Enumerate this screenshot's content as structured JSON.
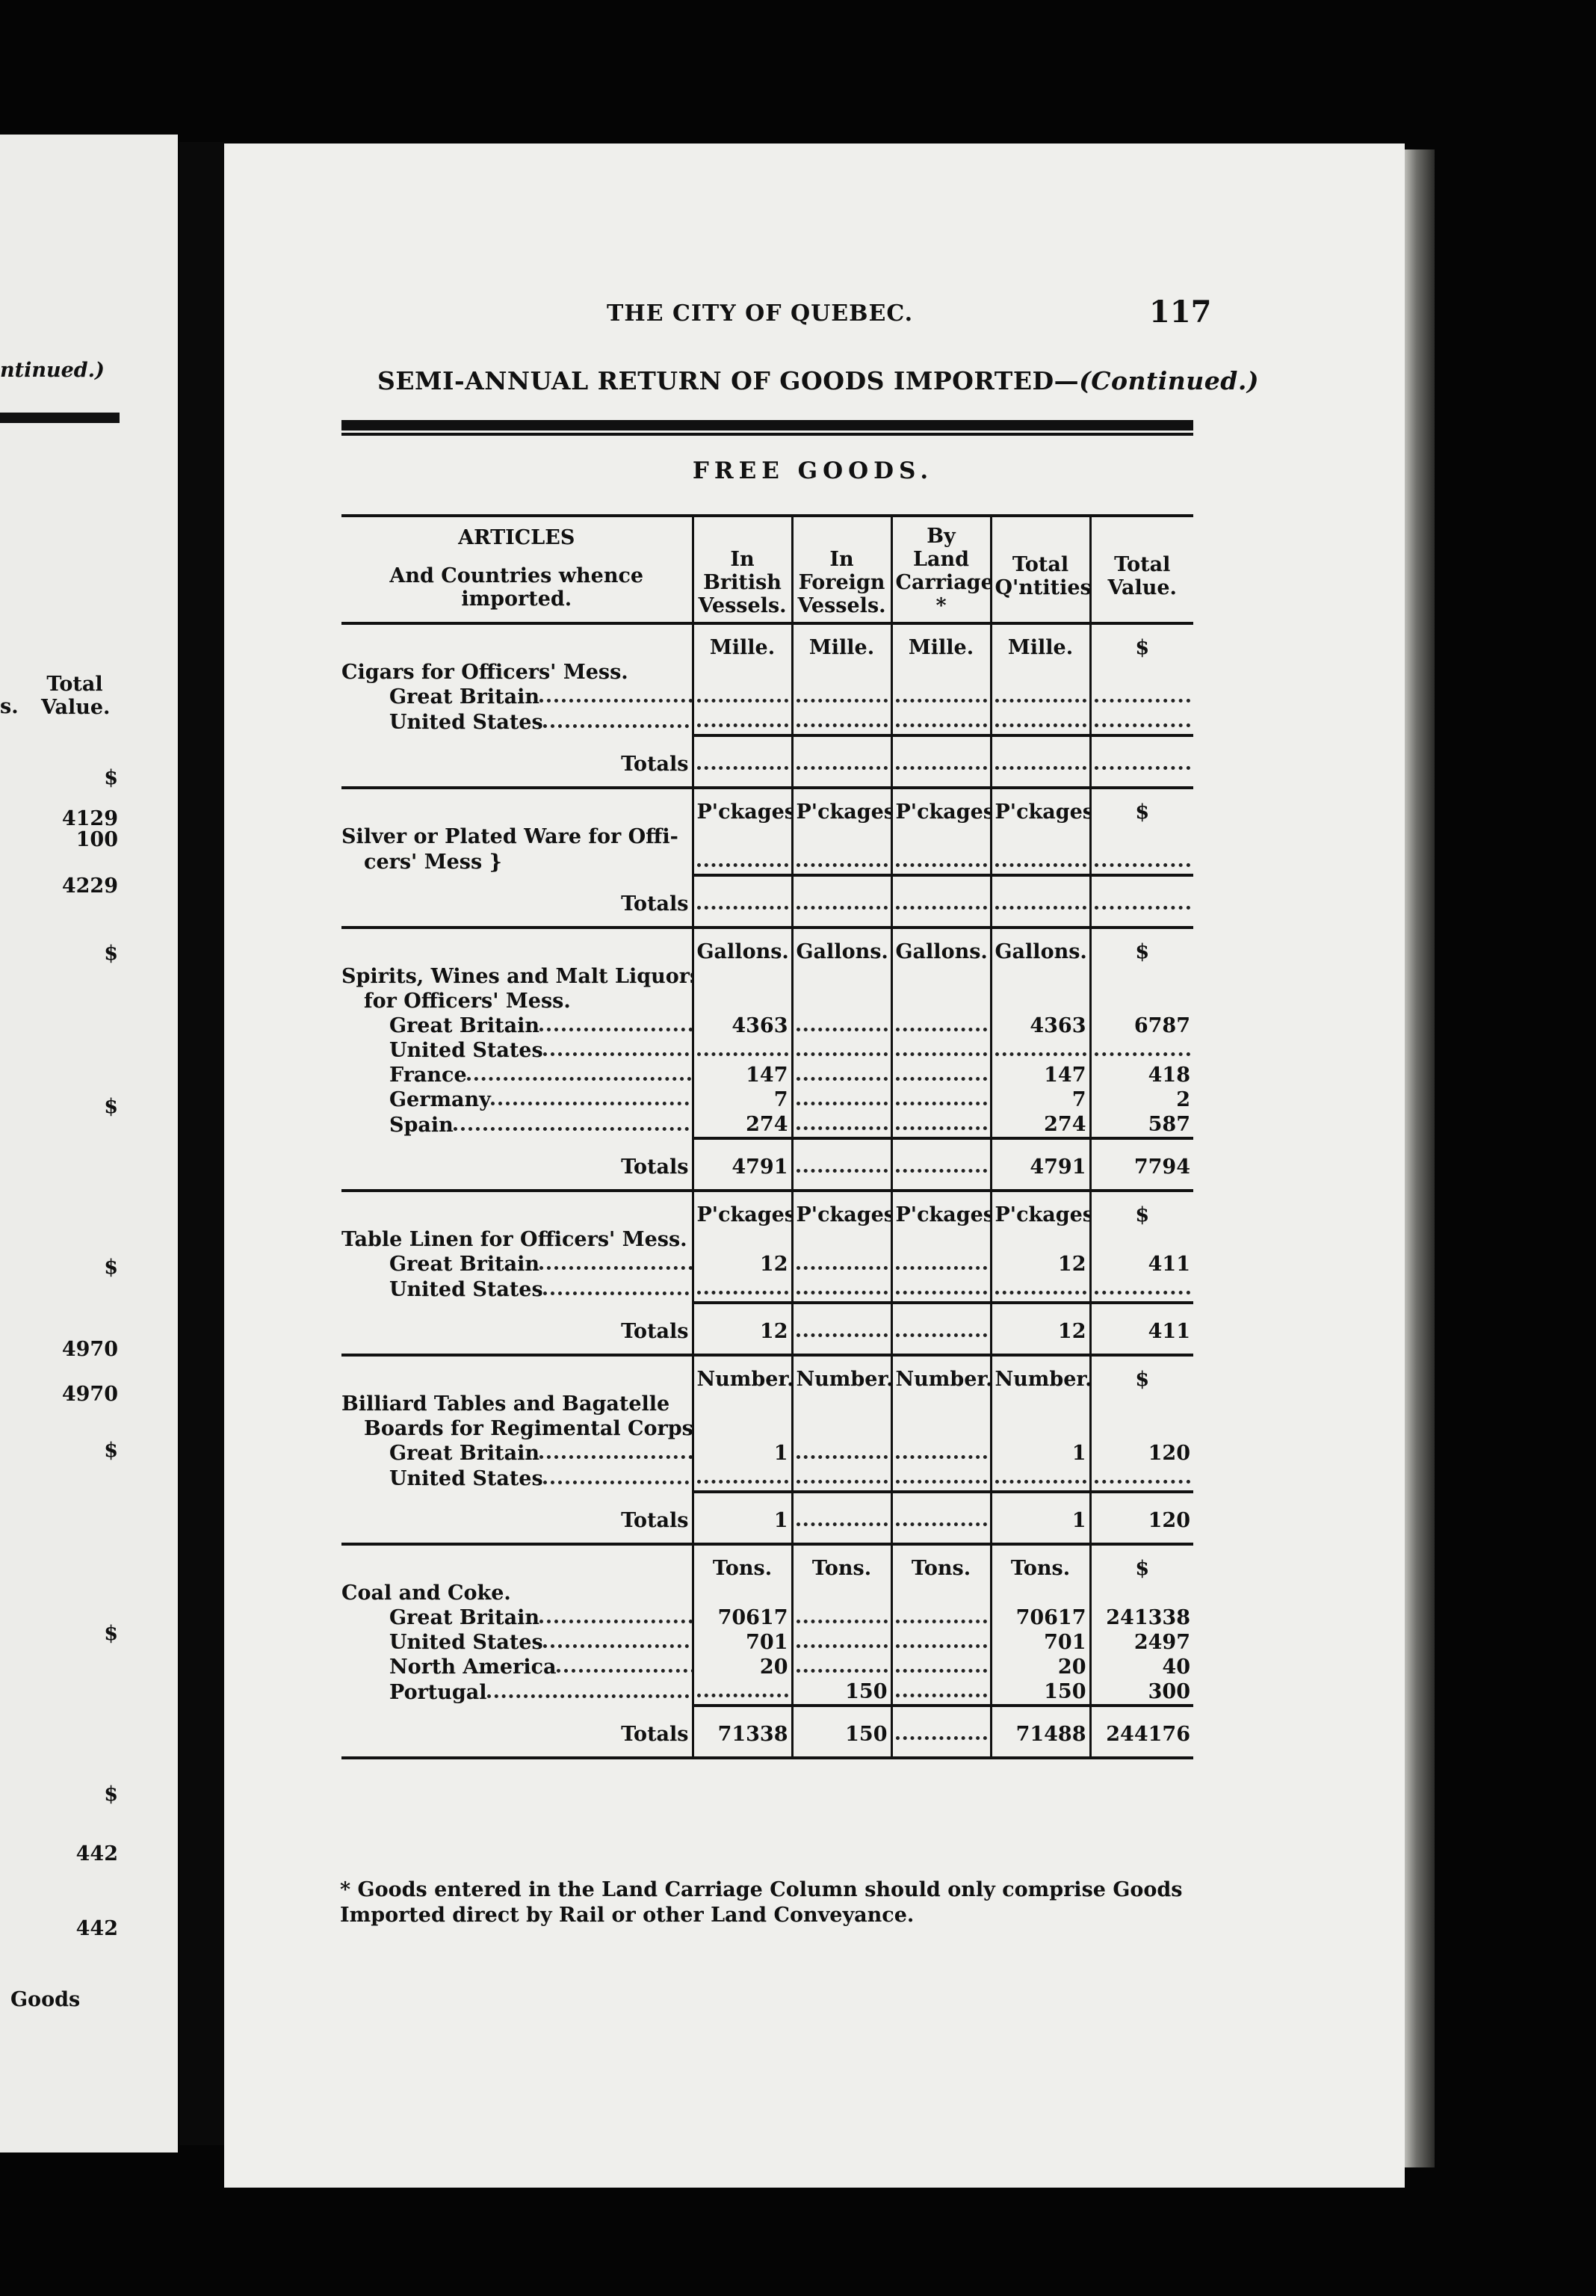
{
  "left_page": {
    "header_fragment": "ntinued.)",
    "col_fragment": "s.",
    "total_value_header": "Total Value.",
    "values": [
      "$",
      "4129",
      "100",
      "4229",
      "$",
      "$",
      "$",
      "4970",
      "4970",
      "$",
      "$",
      "$",
      "442",
      "442"
    ],
    "footer_fragment": "Goods"
  },
  "running_title": "THE CITY OF QUEBEC.",
  "page_number": "117",
  "title": "SEMI-ANNUAL RETURN OF GOODS IMPORTED—",
  "title_continued": "(Continued.)",
  "subtitle": "FREE GOODS.",
  "headers": {
    "articles_1": "ARTICLES",
    "articles_2": "And Countries whence imported.",
    "british": "In British Vessels.",
    "foreign": "In Foreign Vessels.",
    "land": "By Land Carriage *",
    "qty": "Total Q'ntities",
    "value": "Total Value."
  },
  "totals_label": "Totals",
  "sections": [
    {
      "units": "Mille.",
      "value_unit": "$",
      "name_lines": [
        "Cigars for Officers' Mess."
      ],
      "rows": [
        {
          "label": "Great Britain",
          "british": null,
          "foreign": null,
          "land": null,
          "qty": null,
          "value": null
        },
        {
          "label": "United States",
          "british": null,
          "foreign": null,
          "land": null,
          "qty": null,
          "value": null
        }
      ],
      "totals": {
        "british": null,
        "foreign": null,
        "land": null,
        "qty": null,
        "value": null
      }
    },
    {
      "units": "P'ckages",
      "value_unit": "$",
      "name_lines": [
        "Silver or Plated Ware for Offi-",
        "cers' Mess }"
      ],
      "rows": [
        {
          "label": "",
          "british": null,
          "foreign": null,
          "land": null,
          "qty": null,
          "value": null
        }
      ],
      "totals": {
        "british": null,
        "foreign": null,
        "land": null,
        "qty": null,
        "value": null
      }
    },
    {
      "units": "Gallons.",
      "value_unit": "$",
      "name_lines": [
        "Spirits, Wines and Malt Liquors",
        "for Officers' Mess."
      ],
      "rows": [
        {
          "label": "Great Britain",
          "british": "4363",
          "foreign": null,
          "land": null,
          "qty": "4363",
          "value": "6787"
        },
        {
          "label": "United States",
          "british": null,
          "foreign": null,
          "land": null,
          "qty": null,
          "value": null
        },
        {
          "label": "France",
          "british": "147",
          "foreign": null,
          "land": null,
          "qty": "147",
          "value": "418"
        },
        {
          "label": "Germany",
          "british": "7",
          "foreign": null,
          "land": null,
          "qty": "7",
          "value": "2"
        },
        {
          "label": "Spain",
          "british": "274",
          "foreign": null,
          "land": null,
          "qty": "274",
          "value": "587"
        }
      ],
      "totals": {
        "british": "4791",
        "foreign": null,
        "land": null,
        "qty": "4791",
        "value": "7794"
      }
    },
    {
      "units": "P'ckages",
      "value_unit": "$",
      "name_lines": [
        "Table Linen for Officers' Mess."
      ],
      "rows": [
        {
          "label": "Great Britain",
          "british": "12",
          "foreign": null,
          "land": null,
          "qty": "12",
          "value": "411"
        },
        {
          "label": "United States",
          "british": null,
          "foreign": null,
          "land": null,
          "qty": null,
          "value": null
        }
      ],
      "totals": {
        "british": "12",
        "foreign": null,
        "land": null,
        "qty": "12",
        "value": "411"
      }
    },
    {
      "units": "Number.",
      "value_unit": "$",
      "name_lines": [
        "Billiard Tables and Bagatelle",
        "Boards for Regimental Corps."
      ],
      "rows": [
        {
          "label": "Great Britain",
          "british": "1",
          "foreign": null,
          "land": null,
          "qty": "1",
          "value": "120"
        },
        {
          "label": "United States",
          "british": null,
          "foreign": null,
          "land": null,
          "qty": null,
          "value": null
        }
      ],
      "totals": {
        "british": "1",
        "foreign": null,
        "land": null,
        "qty": "1",
        "value": "120"
      }
    },
    {
      "units": "Tons.",
      "value_unit": "$",
      "name_lines": [
        "Coal and Coke."
      ],
      "rows": [
        {
          "label": "Great Britain",
          "british": "70617",
          "foreign": null,
          "land": null,
          "qty": "70617",
          "value": "241338"
        },
        {
          "label": "United States",
          "british": "701",
          "foreign": null,
          "land": null,
          "qty": "701",
          "value": "2497"
        },
        {
          "label": "North America",
          "british": "20",
          "foreign": null,
          "land": null,
          "qty": "20",
          "value": "40"
        },
        {
          "label": "Portugal",
          "british": null,
          "foreign": "150",
          "land": null,
          "qty": "150",
          "value": "300"
        }
      ],
      "totals": {
        "british": "71338",
        "foreign": "150",
        "land": null,
        "qty": "71488",
        "value": "244176"
      }
    }
  ],
  "footnote": "* Goods entered in the Land Carriage Column should only comprise Goods Imported direct by Rail or other Land Conveyance."
}
